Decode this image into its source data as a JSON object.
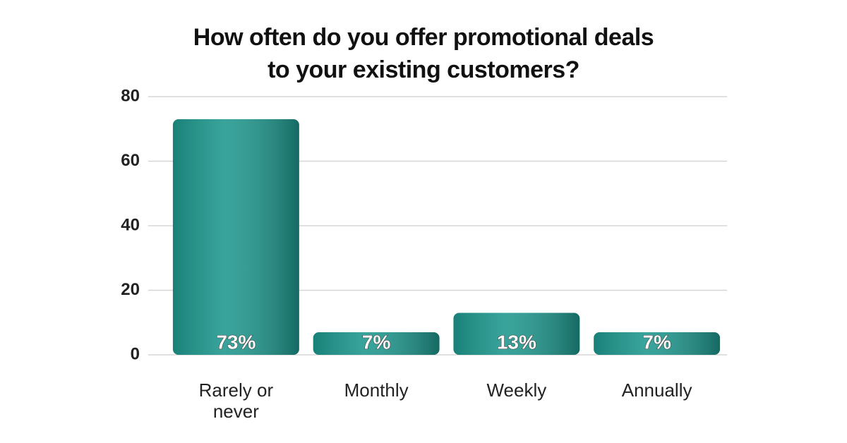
{
  "chart_data": {
    "type": "bar",
    "title": "How often do you offer promotional deals to your existing customers?",
    "categories": [
      "Rarely or never",
      "Monthly",
      "Weekly",
      "Annually"
    ],
    "values": [
      73,
      7,
      13,
      7
    ],
    "value_labels": [
      "73%",
      "7%",
      "13%",
      "7%"
    ],
    "color": "#1d978d",
    "ylim": [
      0,
      80
    ],
    "yticks": [
      0,
      20,
      40,
      60,
      80
    ],
    "grid": true
  }
}
